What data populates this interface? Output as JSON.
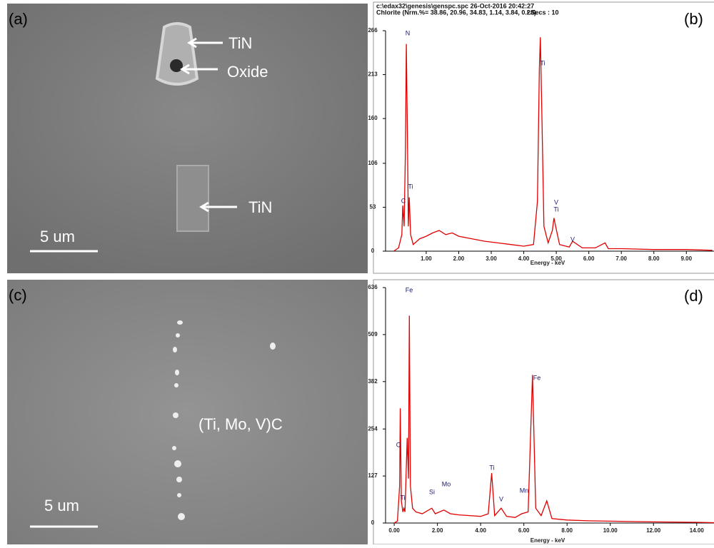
{
  "panels": [
    {
      "letter": "(a)",
      "annotations": [
        "TiN",
        "Oxide",
        "TiN"
      ],
      "scale_bar": "5 um"
    },
    {
      "letter": "(c)",
      "annotations": [
        "(Ti, Mo, V)C"
      ],
      "scale_bar": "5 um"
    }
  ],
  "chart_data": [
    {
      "type": "line",
      "panel_label": "(b)",
      "header": [
        "c:\\edax32\\genesis\\genspc.spc  26-Oct-2016 20:42:27",
        "Chlorite (Nrm.%= 38.86, 20.96, 34.83, 1.14, 3.84, 0.28)",
        "LSecs :  10"
      ],
      "x_label": "Energy - keV",
      "color": "#e00000",
      "peak_labels": [
        "N",
        "Ti",
        "C",
        "Ti",
        "V",
        "Ti",
        "V"
      ],
      "x": [
        0,
        0.15,
        0.25,
        0.28,
        0.32,
        0.36,
        0.39,
        0.42,
        0.45,
        0.48,
        0.52,
        0.6,
        0.8,
        1.0,
        1.2,
        1.4,
        1.6,
        1.8,
        2.0,
        2.4,
        2.8,
        3.2,
        3.6,
        4.0,
        4.3,
        4.42,
        4.48,
        4.51,
        4.55,
        4.62,
        4.75,
        4.88,
        4.93,
        4.98,
        5.1,
        5.4,
        5.5,
        5.8,
        6.2,
        6.5,
        6.6,
        7.0,
        8.0,
        9.0,
        9.8
      ],
      "values": [
        0,
        4,
        20,
        55,
        30,
        120,
        250,
        150,
        30,
        65,
        20,
        8,
        15,
        18,
        22,
        25,
        20,
        22,
        18,
        15,
        12,
        10,
        8,
        6,
        8,
        60,
        220,
        258,
        180,
        30,
        10,
        25,
        40,
        30,
        8,
        5,
        12,
        4,
        4,
        10,
        3,
        3,
        2,
        2,
        1
      ],
      "xlim": [
        -0.25,
        9.85
      ],
      "ylim": [
        0,
        266
      ],
      "xticks": [
        {
          "value": 1,
          "label": "1.00"
        },
        {
          "value": 2,
          "label": "2.00"
        },
        {
          "value": 3,
          "label": "3.00"
        },
        {
          "value": 4,
          "label": "4.00"
        },
        {
          "value": 5,
          "label": "5.00"
        },
        {
          "value": 6,
          "label": "6.00"
        },
        {
          "value": 7,
          "label": "7.00"
        },
        {
          "value": 8,
          "label": "8.00"
        },
        {
          "value": 9,
          "label": "9.00"
        }
      ],
      "yticks": [
        0,
        53,
        106,
        160,
        213,
        266
      ]
    },
    {
      "type": "line",
      "panel_label": "(d)",
      "x_label": "Energy - keV",
      "color": "#e00000",
      "peak_labels": [
        "Fe",
        "C",
        "Ti",
        "Si",
        "Mo",
        "Ti",
        "V",
        "Mn",
        "Fe"
      ],
      "x": [
        0,
        0.15,
        0.25,
        0.28,
        0.33,
        0.4,
        0.45,
        0.5,
        0.6,
        0.66,
        0.7,
        0.75,
        0.85,
        1.0,
        1.3,
        1.74,
        1.9,
        2.3,
        2.6,
        3.0,
        3.5,
        4.0,
        4.35,
        4.51,
        4.65,
        4.95,
        5.2,
        5.6,
        5.9,
        6.2,
        6.4,
        6.55,
        6.8,
        7.06,
        7.3,
        8.0,
        9.0,
        10.0,
        12.0,
        14.0,
        14.8
      ],
      "values": [
        0,
        5,
        100,
        310,
        60,
        30,
        40,
        30,
        230,
        120,
        560,
        100,
        40,
        30,
        25,
        40,
        25,
        35,
        25,
        22,
        20,
        18,
        25,
        135,
        20,
        40,
        18,
        15,
        25,
        30,
        400,
        40,
        20,
        60,
        12,
        8,
        6,
        5,
        3,
        2,
        1
      ],
      "xlim": [
        -0.4,
        14.8
      ],
      "ylim": [
        0,
        636
      ],
      "xticks": [
        {
          "value": 0,
          "label": "0.00"
        },
        {
          "value": 2,
          "label": "2.00"
        },
        {
          "value": 4,
          "label": "4.00"
        },
        {
          "value": 6,
          "label": "6.00"
        },
        {
          "value": 8,
          "label": "8.00"
        },
        {
          "value": 10,
          "label": "10.00"
        },
        {
          "value": 12,
          "label": "12.00"
        },
        {
          "value": 14,
          "label": "14.00"
        }
      ],
      "yticks": [
        0,
        127,
        254,
        382,
        509,
        636
      ]
    }
  ]
}
